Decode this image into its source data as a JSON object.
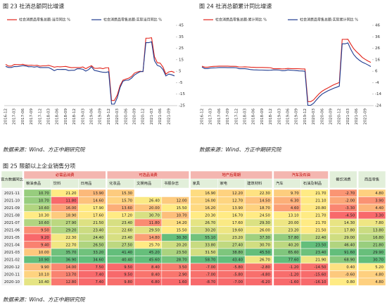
{
  "chart_data": [
    {
      "type": "line",
      "title": "图 23  社消总额同比增速",
      "source": "数据来源：Wind、方正中期研究院",
      "y_axis_side": "right",
      "categories": [
        "2016-12",
        null,
        null,
        "2017-03",
        null,
        null,
        "2017-06",
        null,
        null,
        "2017-09",
        null,
        null,
        "2017-12",
        null,
        null,
        "2018-03",
        null,
        null,
        "2018-06",
        null,
        null,
        "2018-09",
        null,
        null,
        "2018-12",
        null,
        null,
        "2019-03",
        null,
        null,
        "2019-06",
        null,
        null,
        "2019-09",
        null,
        null,
        "2019-12",
        null,
        null,
        "2020-03",
        null,
        null,
        "2020-06",
        null,
        null,
        "2020-09",
        null,
        null,
        "2020-12",
        null,
        null,
        "2021-03",
        null,
        null,
        "2021-06",
        null,
        null,
        "2021-09",
        null,
        null
      ],
      "series": [
        {
          "name": "社会消费品零售总额:当月同比  %",
          "color": "#e2231a",
          "values": [
            10.9,
            9.5,
            9.5,
            10.9,
            10.7,
            10.7,
            11.0,
            10.4,
            10.1,
            10.3,
            10.0,
            10.2,
            9.4,
            9.7,
            9.7,
            10.1,
            9.4,
            8.5,
            9.0,
            8.8,
            9.0,
            9.2,
            8.6,
            8.1,
            8.2,
            8.2,
            8.2,
            8.7,
            7.2,
            8.6,
            9.8,
            7.6,
            7.5,
            7.8,
            7.2,
            8.0,
            8.0,
            -20.5,
            -20.5,
            -15.8,
            -7.5,
            -2.8,
            -1.8,
            -1.1,
            0.5,
            3.3,
            4.3,
            5.0,
            4.6,
            33.8,
            33.8,
            34.2,
            17.7,
            12.4,
            12.1,
            8.5,
            2.5,
            4.4,
            4.9,
            3.9
          ]
        },
        {
          "name": "社会消费品零售总额:实际当月同比  %",
          "color": "#1f3b8f",
          "values": [
            9.2,
            8.3,
            8.3,
            9.1,
            9.0,
            9.4,
            9.9,
            9.6,
            8.9,
            9.0,
            8.6,
            9.0,
            8.2,
            8.2,
            8.2,
            8.2,
            7.0,
            5.5,
            6.6,
            6.5,
            6.6,
            6.5,
            5.6,
            5.8,
            5.8,
            7.1,
            7.1,
            6.7,
            5.1,
            6.4,
            8.9,
            5.7,
            5.2,
            4.6,
            4.1,
            4.0,
            4.5,
            -23.7,
            -23.7,
            -18.1,
            -9.1,
            -3.7,
            -2.9,
            -2.7,
            -1.0,
            1.7,
            3.2,
            4.6,
            4.8,
            29.9,
            29.9,
            30.7,
            14.3,
            10.1,
            9.2,
            6.4,
            0.9,
            2.5,
            1.9,
            0.9
          ]
        }
      ],
      "ylim": [
        -25,
        45
      ],
      "yticks": [
        -25,
        -15,
        -5,
        5,
        15,
        25,
        35,
        45
      ]
    },
    {
      "type": "line",
      "title": "图 24  社消总额累计同比增速",
      "source": "数据来源：Wind、方正中期研究院",
      "y_axis_side": "right",
      "categories": [
        "2016-12",
        null,
        null,
        "2017-03",
        null,
        null,
        "2017-06",
        null,
        null,
        "2017-09",
        null,
        null,
        "2017-12",
        null,
        null,
        "2018-03",
        null,
        null,
        "2018-06",
        null,
        null,
        "2018-09",
        null,
        null,
        "2018-12",
        null,
        null,
        "2019-03",
        null,
        null,
        "2019-06",
        null,
        null,
        "2019-09",
        null,
        null,
        "2019-12",
        null,
        null,
        "2020-03",
        null,
        null,
        "2020-06",
        null,
        null,
        "2020-09",
        null,
        null,
        "2020-12",
        null,
        null,
        "2021-03",
        null,
        null,
        "2021-06",
        null,
        null,
        "2021-09",
        null,
        null
      ],
      "series": [
        {
          "name": "社会消费品零售总额:累计同比  %",
          "color": "#e2231a",
          "values": [
            10.4,
            9.5,
            9.5,
            10.0,
            10.2,
            10.3,
            10.4,
            10.4,
            10.4,
            10.4,
            10.3,
            10.3,
            10.2,
            9.7,
            9.7,
            9.8,
            9.7,
            9.5,
            9.4,
            9.3,
            9.3,
            9.3,
            9.2,
            9.1,
            9.0,
            8.2,
            8.2,
            8.3,
            8.0,
            8.1,
            8.4,
            8.3,
            8.2,
            8.2,
            8.1,
            8.0,
            8.0,
            -20.5,
            -20.5,
            -19.0,
            -16.2,
            -13.5,
            -11.4,
            -9.9,
            -8.6,
            -7.2,
            -5.9,
            -4.8,
            -3.9,
            33.8,
            33.8,
            33.9,
            29.6,
            25.7,
            23.0,
            20.7,
            18.1,
            16.4,
            14.9,
            13.7
          ]
        },
        {
          "name": "社会消费品零售总额:实际累计同比  %",
          "color": "#1f3b8f",
          "values": [
            9.6,
            8.3,
            8.3,
            8.8,
            8.9,
            9.0,
            9.2,
            9.2,
            9.2,
            9.1,
            9.1,
            9.1,
            9.0,
            8.2,
            8.2,
            8.2,
            7.9,
            7.4,
            7.2,
            7.1,
            7.0,
            7.0,
            6.9,
            6.8,
            6.9,
            7.1,
            7.1,
            7.0,
            6.4,
            6.5,
            7.1,
            6.9,
            6.7,
            6.5,
            6.3,
            6.2,
            6.0,
            -23.7,
            -23.7,
            -22.0,
            -19.0,
            -16.2,
            -13.9,
            -12.5,
            -11.1,
            -10.0,
            -8.9,
            -8.0,
            -7.0,
            29.9,
            29.9,
            30.7,
            25.1,
            20.6,
            17.7,
            15.6,
            13.9,
            12.8,
            11.5,
            10.1
          ]
        }
      ],
      "ylim": [
        -24,
        46
      ],
      "yticks": [
        -24,
        -14,
        -4,
        6,
        16,
        26,
        36,
        46
      ]
    }
  ],
  "table": {
    "title": "图 25  限额以上企业销售分项",
    "corner": "官方数据同比",
    "groups": [
      {
        "label": "必需品消费",
        "columns": [
          "粮油食品",
          "饮料",
          "日用品"
        ]
      },
      {
        "label": "可选品消费",
        "columns": [
          "化妆品",
          "文娱用品",
          "书报杂志"
        ]
      },
      {
        "label": "地产后周期",
        "columns": [
          "家具",
          "家电",
          "建筑材料"
        ]
      },
      {
        "label": "汽车及石油",
        "columns": [
          "汽车",
          "石油及制品"
        ]
      }
    ],
    "extra_columns": [
      "餐饮消费",
      "商品零售"
    ],
    "rows": [
      {
        "label": "2021-11",
        "cells": [
          "10.70",
          "21.20",
          "13.90",
          "15.30",
          null,
          null,
          "16.90",
          "12.20",
          "22.30",
          "9.70",
          "21.70",
          "-2.70",
          "4.80"
        ]
      },
      {
        "label": "2021-10",
        "cells": [
          "10.70",
          "11.80",
          "14.60",
          "15.70",
          "26.40",
          "12.00",
          "16.00",
          "12.70",
          "14.50",
          "6.30",
          "21.10",
          "-2.00",
          "3.90"
        ]
      },
      {
        "label": "2021-09",
        "cells": [
          "10.60",
          "16.00",
          "17.90",
          "13.60",
          "20.00",
          "15.50",
          "16.20",
          "13.90",
          "18.70",
          "4.60",
          "20.80",
          "-3.30",
          "4.40"
        ]
      },
      {
        "label": "2021-08",
        "cells": [
          "10.30",
          "18.90",
          "17.60",
          "17.20",
          "30.70",
          "10.70",
          "20.30",
          "16.70",
          "24.50",
          "13.10",
          "21.70",
          "-4.50",
          "3.30"
        ]
      },
      {
        "label": "2021-07",
        "cells": [
          "10.60",
          "27.90",
          "21.50",
          "23.40",
          "11.80",
          "14.20",
          "26.70",
          "17.60",
          "29.30",
          "20.00",
          "21.70",
          "14.30",
          "7.80"
        ]
      },
      {
        "label": "2021-06",
        "cells": [
          "9.50",
          "29.20",
          "23.40",
          "22.60",
          "29.50",
          "15.50",
          "30.20",
          "19.60",
          "26.00",
          "23.20",
          "21.50",
          "17.80",
          "13.80"
        ]
      },
      {
        "label": "2021-05",
        "cells": [
          "9.20",
          "22.30",
          "24.40",
          "23.40",
          "14.80",
          "30.30",
          "55.10",
          "23.20",
          "37.30",
          "57.80",
          "22.40",
          "29.00",
          "16.80"
        ]
      },
      {
        "label": "2021-04",
        "cells": [
          "9.40",
          "22.70",
          "26.50",
          "27.50",
          "25.70",
          "20.20",
          "33.80",
          "27.40",
          "30.70",
          "40.20",
          "23.50",
          "46.40",
          "21.80"
        ]
      },
      {
        "label": "2021-03",
        "cells": [
          "10.00",
          "35.70",
          "33.20",
          "41.40",
          "45.20",
          "23.50",
          "31.50",
          "38.80",
          "45.50",
          "65.60",
          "23.40",
          "91.60",
          "29.90"
        ]
      },
      {
        "label": "2021-02",
        "cells": [
          "10.90",
          "36.90",
          "34.60",
          "40.40",
          "45.60",
          "28.70",
          "58.70",
          "43.40",
          "26.70",
          "77.60",
          "21.90",
          "68.90",
          "30.70"
        ]
      },
      {
        "label": "2020-12",
        "cells": [
          "9.90",
          "14.00",
          "7.50",
          "9.50",
          "8.40",
          "3.50",
          "-7.00",
          "-5.80",
          "-2.80",
          "-1.20",
          "-14.50",
          "0.40",
          "5.20"
        ]
      },
      {
        "label": "2020-11",
        "cells": [
          "10.10",
          "13.70",
          "7.40",
          "9.50",
          "8.40",
          "2.90",
          "-7.00",
          "-5.80",
          "-4.80",
          "-1.20",
          "-15.60",
          "-0.60",
          "4.80"
        ]
      },
      {
        "label": "2020-10",
        "cells": [
          "10.40",
          "12.80",
          "7.40",
          "9.80",
          "6.80",
          "1.60",
          "-8.70",
          "-7.00",
          "-6.20",
          "-1.60",
          "-16.10",
          "0.80",
          "4.80"
        ]
      }
    ],
    "source": "数据来源：Wind、方正中期研究院"
  }
}
